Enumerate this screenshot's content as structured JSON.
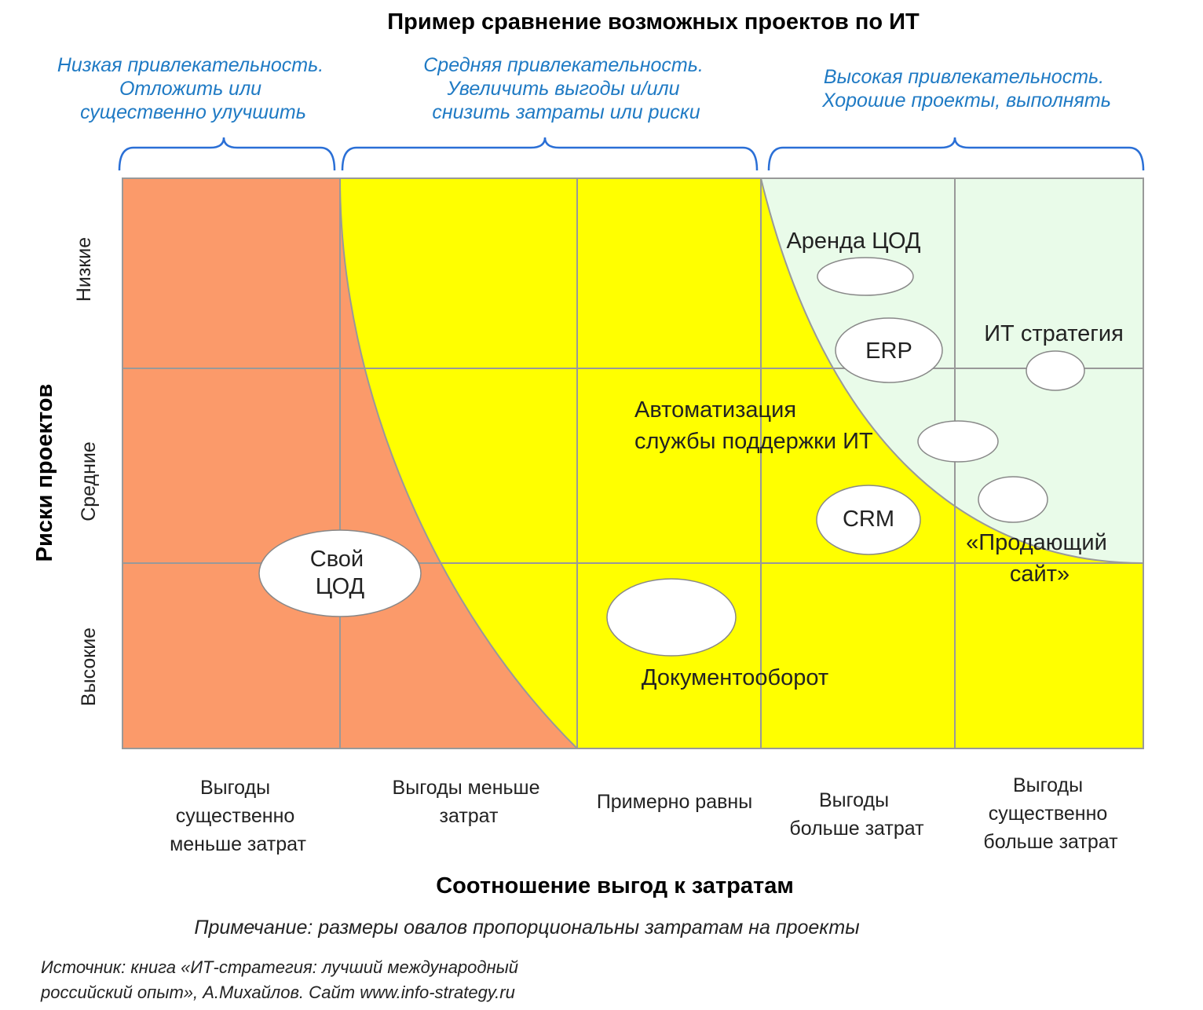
{
  "title": "Пример сравнение возможных проектов по ИТ",
  "zones": [
    {
      "lines": [
        "Низкая привлекательность.",
        "Отложить или",
        "существенно улучшить"
      ]
    },
    {
      "lines": [
        "Средняя привлекательность.",
        "Увеличить выгоды и/или",
        "снизить затраты или риски"
      ]
    },
    {
      "lines": [
        "Высокая привлекательность.",
        "Хорошие проекты, выполнять"
      ]
    }
  ],
  "y_axis": {
    "title": "Риски проектов",
    "levels": [
      "Низкие",
      "Средние",
      "Высокие"
    ]
  },
  "x_axis": {
    "title": "Соотношение выгод к затратам",
    "categories": [
      {
        "lines": [
          "Выгоды",
          "существенно",
          "меньше затрат"
        ]
      },
      {
        "lines": [
          "Выгоды меньше",
          "затрат"
        ]
      },
      {
        "lines": [
          "Примерно равны"
        ]
      },
      {
        "lines": [
          "Выгоды",
          "больше затрат"
        ]
      },
      {
        "lines": [
          "Выгоды",
          "существенно",
          "больше затрат"
        ]
      }
    ]
  },
  "projects": [
    {
      "lines": [
        "Аренда ЦОД"
      ]
    },
    {
      "lines": [
        "ERP"
      ]
    },
    {
      "lines": [
        "ИТ стратегия"
      ]
    },
    {
      "lines": [
        "Автоматизация",
        "службы поддержки ИТ"
      ]
    },
    {
      "lines": [
        "CRM"
      ]
    },
    {
      "lines": [
        "«Продающий",
        "сайт»"
      ]
    },
    {
      "lines": [
        "Свой",
        "ЦОД"
      ]
    },
    {
      "lines": [
        "Документооборот"
      ]
    }
  ],
  "note": "Примечание: размеры овалов пропорциональны затратам на проекты",
  "source_lines": [
    "Источник: книга «ИТ-стратегия: лучший международный",
    "российский опыт», А.Михайлов.   Сайт www.info-strategy.ru"
  ],
  "colors": {
    "low_zone": "#fb9a6a",
    "mid_zone": "#ffff00",
    "high_zone": "#e9fbe9",
    "grid": "#999999",
    "zone_text": "#1f7ac4",
    "brace": "#2a6fd6"
  }
}
